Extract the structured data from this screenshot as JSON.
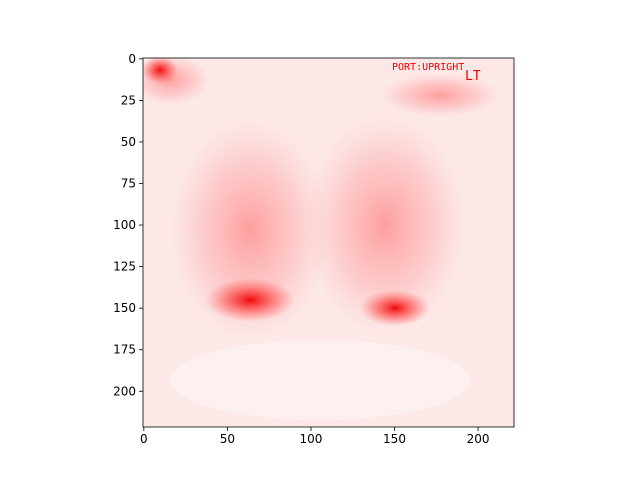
{
  "chart_data": {
    "type": "image",
    "colormap": "white-to-red",
    "xlim": [
      -0.5,
      221.5
    ],
    "ylim": [
      221.5,
      -0.5
    ],
    "xticks": [
      0,
      50,
      100,
      150,
      200
    ],
    "yticks": [
      0,
      25,
      50,
      75,
      100,
      125,
      150,
      175,
      200
    ],
    "annotations": [
      "PORT:UPRIGHT",
      "LT"
    ]
  }
}
